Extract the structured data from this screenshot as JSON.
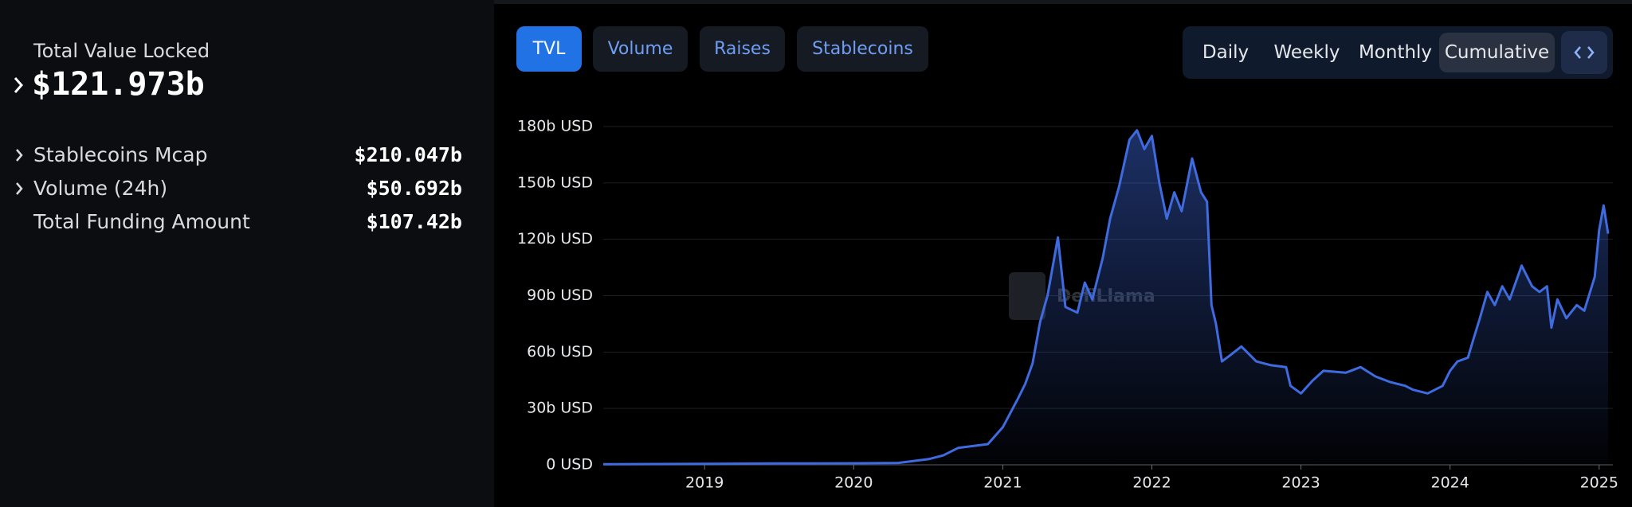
{
  "summary": {
    "title": "Total Value Locked",
    "value": "$121.973b",
    "rows": [
      {
        "label": "Stablecoins Mcap",
        "value": "$210.047b"
      },
      {
        "label": "Volume (24h)",
        "value": "$50.692b"
      },
      {
        "label": "Total Funding Amount",
        "value": "$107.42b"
      }
    ]
  },
  "tabs": [
    "TVL",
    "Volume",
    "Raises",
    "Stablecoins"
  ],
  "periods": [
    "Daily",
    "Weekly",
    "Monthly",
    "Cumulative"
  ],
  "chart_data": {
    "type": "area",
    "watermark": "DefiLlama",
    "x": [
      2018.32,
      2019,
      2019.5,
      2020,
      2020.3,
      2020.5,
      2020.6,
      2020.7,
      2020.9,
      2021.0,
      2021.1,
      2021.15,
      2021.2,
      2021.25,
      2021.3,
      2021.37,
      2021.42,
      2021.5,
      2021.55,
      2021.6,
      2021.67,
      2021.72,
      2021.78,
      2021.85,
      2021.9,
      2021.95,
      2022.0,
      2022.05,
      2022.1,
      2022.15,
      2022.2,
      2022.27,
      2022.33,
      2022.37,
      2022.4,
      2022.43,
      2022.47,
      2022.52,
      2022.6,
      2022.7,
      2022.8,
      2022.9,
      2022.93,
      2023.0,
      2023.08,
      2023.15,
      2023.3,
      2023.4,
      2023.5,
      2023.6,
      2023.7,
      2023.75,
      2023.85,
      2023.95,
      2024.0,
      2024.05,
      2024.12,
      2024.15,
      2024.2,
      2024.25,
      2024.3,
      2024.35,
      2024.4,
      2024.48,
      2024.55,
      2024.6,
      2024.65,
      2024.68,
      2024.72,
      2024.78,
      2024.85,
      2024.9,
      2024.97,
      2025.0,
      2025.03,
      2025.06
    ],
    "series": [
      {
        "name": "TVL",
        "color": "#3f6be0",
        "values": [
          0.3,
          0.5,
          0.7,
          0.8,
          1,
          3,
          5,
          9,
          11,
          20,
          35,
          43,
          54,
          76,
          90,
          121,
          84,
          81,
          97,
          88,
          110,
          131,
          148,
          173,
          178,
          168,
          175,
          150,
          131,
          145,
          135,
          163,
          145,
          140,
          85,
          75,
          55,
          58,
          63,
          55,
          53,
          52,
          42,
          38,
          45,
          50,
          49,
          52,
          47,
          44,
          42,
          40,
          38,
          42,
          50,
          55,
          57,
          65,
          78,
          92,
          85,
          95,
          88,
          106,
          95,
          92,
          95,
          73,
          88,
          78,
          85,
          82,
          100,
          125,
          138,
          123
        ]
      }
    ],
    "xlim": [
      2018.32,
      2025.06
    ],
    "xticks": [
      2019,
      2020,
      2021,
      2022,
      2023,
      2024,
      2025
    ],
    "ylim": [
      0,
      180
    ],
    "yticks": [
      {
        "value": 0,
        "label": "0 USD"
      },
      {
        "value": 30,
        "label": "30b USD"
      },
      {
        "value": 60,
        "label": "60b USD"
      },
      {
        "value": 90,
        "label": "90b USD"
      },
      {
        "value": 120,
        "label": "120b USD"
      },
      {
        "value": 150,
        "label": "150b USD"
      },
      {
        "value": 180,
        "label": "180b USD"
      }
    ],
    "grid": true
  }
}
